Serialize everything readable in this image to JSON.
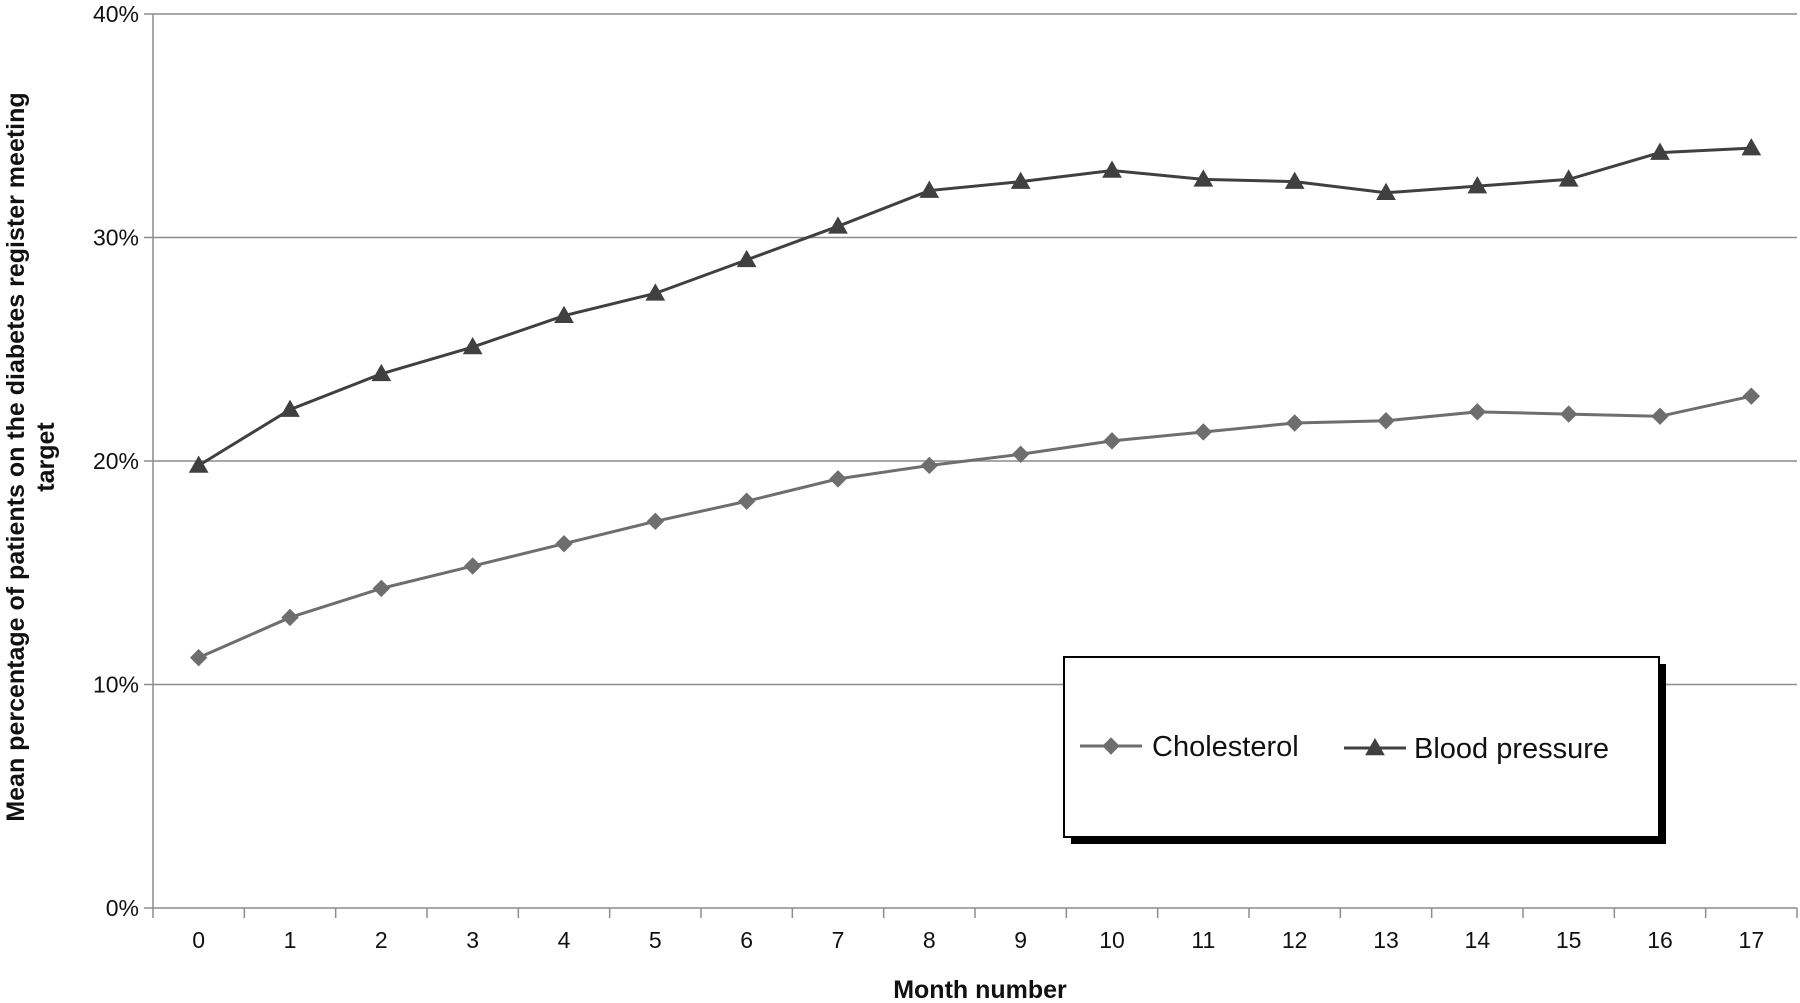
{
  "chart_data": {
    "type": "line",
    "title": "",
    "xlabel": "Month number",
    "ylabel_line1": "Mean percentage of patients on the diabetes  register meeting",
    "ylabel_line2": "target",
    "categories": [
      "0",
      "1",
      "2",
      "3",
      "4",
      "5",
      "6",
      "7",
      "8",
      "9",
      "10",
      "11",
      "12",
      "13",
      "14",
      "15",
      "16",
      "17"
    ],
    "ylim": [
      0,
      40
    ],
    "yticks": [
      0,
      10,
      20,
      30,
      40
    ],
    "ytick_labels": [
      "0%",
      "10%",
      "20%",
      "30%",
      "40%"
    ],
    "grid": "horizontal",
    "legend_position": "bottom-right",
    "series": [
      {
        "name": "Cholesterol",
        "marker": "diamond",
        "color": "#6e6e6e",
        "values": [
          11.2,
          13.0,
          14.3,
          15.3,
          16.3,
          17.3,
          18.2,
          19.2,
          19.8,
          20.3,
          20.9,
          21.3,
          21.7,
          21.8,
          22.2,
          22.1,
          22.0,
          22.9
        ]
      },
      {
        "name": "Blood pressure",
        "marker": "triangle",
        "color": "#404040",
        "values": [
          19.8,
          22.3,
          23.9,
          25.1,
          26.5,
          27.5,
          29.0,
          30.5,
          32.1,
          32.5,
          33.0,
          32.6,
          32.5,
          32.0,
          32.3,
          32.6,
          33.8,
          34.0
        ]
      }
    ]
  }
}
